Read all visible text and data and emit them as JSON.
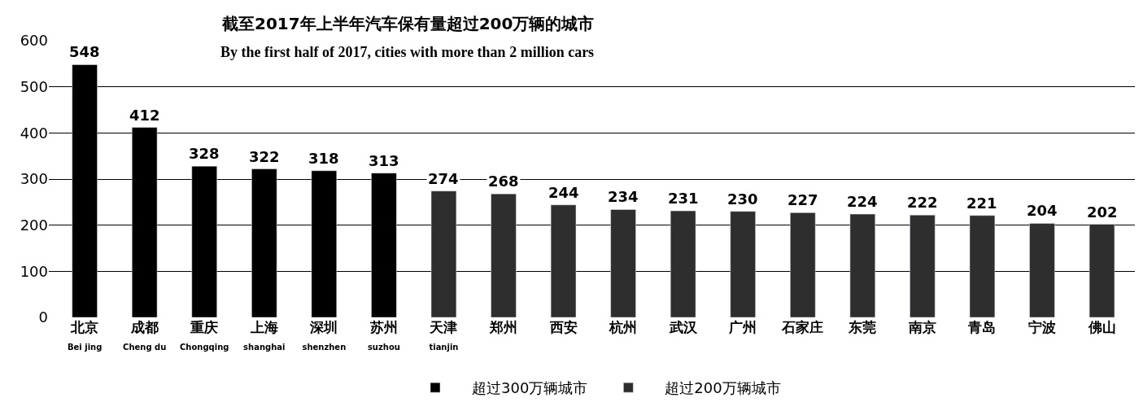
{
  "chart_data": {
    "type": "bar",
    "title": "截至2017年上半年汽车保有量超过200万辆的城市",
    "subtitle": "By the first half of 2017, cities with more than 2 million cars",
    "categories": [
      "北京\nBei jing",
      "成都\nCheng du",
      "重庆\nChongqing",
      "上海\nshanghai",
      "深圳\nshenzhen",
      "苏州\nsuzhou",
      "天津\ntianjin",
      "郑州",
      "西安",
      "杭州",
      "武汉",
      "广州",
      "石家庄",
      "东莞",
      "南京",
      "青岛",
      "宁波",
      "佛山"
    ],
    "series": [
      {
        "name": "超过300万辆城市",
        "color": "#000000",
        "values": [
          548,
          412,
          328,
          322,
          318,
          313,
          null,
          null,
          null,
          null,
          null,
          null,
          null,
          null,
          null,
          null,
          null,
          null
        ]
      },
      {
        "name": "超过200万辆城市",
        "color": "#2e2e2e",
        "values": [
          null,
          null,
          null,
          null,
          null,
          null,
          274,
          268,
          244,
          234,
          231,
          230,
          227,
          224,
          222,
          221,
          204,
          202
        ]
      }
    ],
    "ylim": [
      0,
      600
    ],
    "yticks": [
      0,
      100,
      200,
      300,
      400,
      500,
      600
    ],
    "grid": "y",
    "legend": "bottom",
    "data_labels": true
  }
}
